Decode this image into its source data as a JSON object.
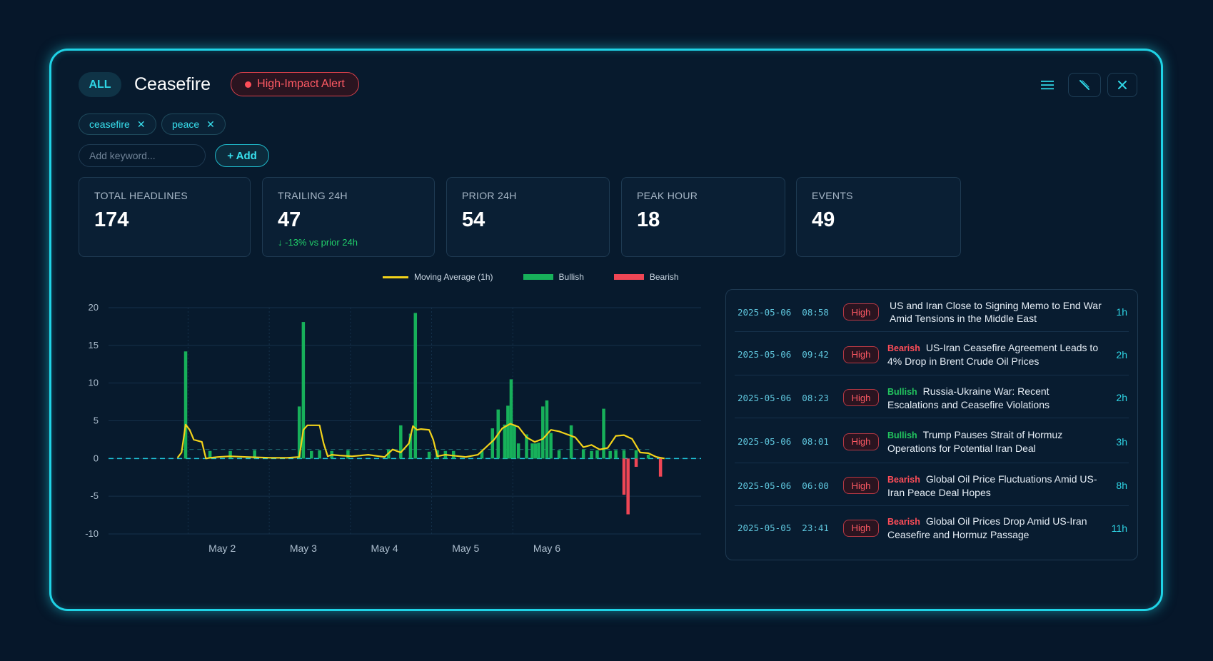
{
  "header": {
    "scope_label": "ALL",
    "title": "Ceasefire",
    "alert_label": "High-Impact Alert"
  },
  "keywords": {
    "tags": [
      "ceasefire",
      "peace"
    ],
    "input_placeholder": "Add keyword...",
    "add_label": "+ Add"
  },
  "stats": [
    {
      "label": "TOTAL HEADLINES",
      "value": "174",
      "sub": ""
    },
    {
      "label": "TRAILING 24H",
      "value": "47",
      "sub": "↓ -13% vs prior 24h"
    },
    {
      "label": "PRIOR 24H",
      "value": "54",
      "sub": ""
    },
    {
      "label": "PEAK HOUR",
      "value": "18",
      "sub": ""
    },
    {
      "label": "EVENTS",
      "value": "49",
      "sub": ""
    }
  ],
  "colors": {
    "accent": "#1fd3e6",
    "bullish": "#17b05a",
    "bearish": "#ef4655",
    "moving_average": "#f2d21a"
  },
  "chart_data": {
    "type": "bar",
    "legend": [
      "Moving Average (1h)",
      "Bullish",
      "Bearish"
    ],
    "x_ticks": [
      "May 2",
      "May 3",
      "May 4",
      "May 5",
      "May 6"
    ],
    "y_ticks": [
      "20",
      "15",
      "10",
      "5",
      "0",
      "-5",
      "-10"
    ],
    "ylim": [
      -10,
      20
    ],
    "grid": true,
    "series": [
      {
        "name": "Bullish",
        "x": [
          1.55,
          1.85,
          2.1,
          2.4,
          2.95,
          3.0,
          3.1,
          3.2,
          3.35,
          3.55,
          4.05,
          4.2,
          4.32,
          4.38,
          4.55,
          4.65,
          4.75,
          4.85,
          5.2,
          5.33,
          5.4,
          5.48,
          5.52,
          5.56,
          5.6,
          5.65,
          5.75,
          5.82,
          5.86,
          5.9,
          5.95,
          6.0,
          6.05,
          6.15,
          6.3,
          6.45,
          6.55,
          6.62,
          6.7,
          6.78,
          6.85,
          6.95,
          7.1,
          7.25
        ],
        "y": [
          14.2,
          1.0,
          1.0,
          1.1,
          6.9,
          18.1,
          1.0,
          1.1,
          1.0,
          1.1,
          1.2,
          4.4,
          3.3,
          19.3,
          0.9,
          1.1,
          1.0,
          1.0,
          1.0,
          4.0,
          6.5,
          4.5,
          7.0,
          10.5,
          4.5,
          2.0,
          3.2,
          2.0,
          2.0,
          2.1,
          6.9,
          7.7,
          3.4,
          1.1,
          4.4,
          1.2,
          1.0,
          1.1,
          6.6,
          1.0,
          1.1,
          1.1,
          1.1,
          0.5
        ],
        "color": "#17b05a"
      },
      {
        "name": "Bearish",
        "x": [
          6.95,
          7.0,
          7.1,
          7.4
        ],
        "y": [
          -4.8,
          -7.4,
          -1.1,
          -2.4
        ],
        "color": "#ef4655"
      },
      {
        "name": "Moving Average (1h)",
        "x": [
          1.45,
          1.5,
          1.55,
          1.6,
          1.65,
          1.75,
          1.8,
          1.85,
          1.95,
          2.1,
          2.3,
          2.6,
          2.8,
          2.95,
          3.0,
          3.05,
          3.1,
          3.2,
          3.25,
          3.3,
          3.35,
          3.45,
          3.6,
          3.8,
          4.0,
          4.1,
          4.2,
          4.3,
          4.35,
          4.4,
          4.45,
          4.55,
          4.6,
          4.65,
          4.75,
          5.0,
          5.15,
          5.25,
          5.35,
          5.45,
          5.55,
          5.65,
          5.75,
          5.85,
          5.95,
          6.05,
          6.15,
          6.25,
          6.35,
          6.45,
          6.55,
          6.65,
          6.75,
          6.85,
          6.95,
          7.05,
          7.15,
          7.25,
          7.35,
          7.45
        ],
        "y": [
          0.1,
          0.8,
          4.5,
          3.8,
          2.5,
          2.2,
          0.0,
          0.1,
          0.2,
          0.3,
          0.2,
          0.1,
          0.1,
          0.2,
          3.8,
          4.4,
          4.4,
          4.4,
          2.0,
          0.3,
          0.5,
          0.4,
          0.3,
          0.5,
          0.2,
          1.2,
          0.8,
          2.0,
          4.3,
          3.8,
          3.9,
          3.8,
          2.5,
          0.3,
          0.5,
          0.2,
          0.5,
          1.5,
          2.5,
          4.0,
          4.6,
          4.2,
          2.8,
          2.2,
          2.6,
          3.8,
          3.6,
          3.2,
          2.8,
          1.5,
          1.8,
          1.2,
          1.4,
          3.0,
          3.1,
          2.6,
          0.8,
          0.7,
          0.2,
          0.0
        ],
        "color": "#f2d21a"
      }
    ]
  },
  "news": [
    {
      "timestamp": "2025-05-06  08:58",
      "impact": "High",
      "sentiment": "",
      "headline": "US and Iran Close to Signing Memo to End War Amid Tensions in the Middle East",
      "age": "1h"
    },
    {
      "timestamp": "2025-05-06  09:42",
      "impact": "High",
      "sentiment": "Bearish",
      "headline": "US-Iran Ceasefire Agreement Leads to 4% Drop in Brent Crude Oil Prices",
      "age": "2h"
    },
    {
      "timestamp": "2025-05-06  08:23",
      "impact": "High",
      "sentiment": "Bullish",
      "headline": "Russia-Ukraine War: Recent Escalations and Ceasefire Violations",
      "age": "2h"
    },
    {
      "timestamp": "2025-05-06  08:01",
      "impact": "High",
      "sentiment": "Bullish",
      "headline": "Trump Pauses Strait of Hormuz Operations for Potential Iran Deal",
      "age": "3h"
    },
    {
      "timestamp": "2025-05-06  06:00",
      "impact": "High",
      "sentiment": "Bearish",
      "headline": "Global Oil Price Fluctuations Amid US-Iran Peace Deal Hopes",
      "age": "8h"
    },
    {
      "timestamp": "2025-05-05  23:41",
      "impact": "High",
      "sentiment": "Bearish",
      "headline": "Global Oil Prices Drop Amid US-Iran Ceasefire and Hormuz Passage",
      "age": "11h"
    }
  ]
}
